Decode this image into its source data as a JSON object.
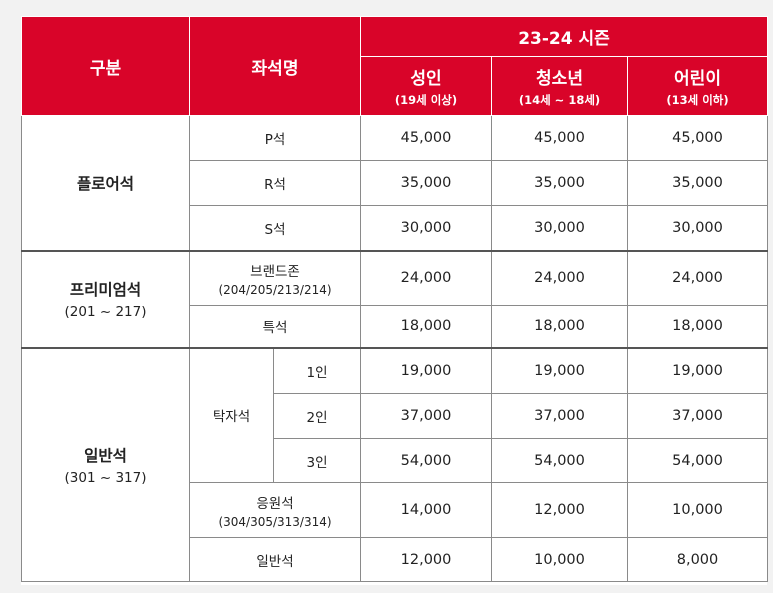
{
  "header": {
    "category": "구분",
    "seat_name": "좌석명",
    "season": "23-24 시즌",
    "adult": {
      "label": "성인",
      "sub": "(19세 이상)"
    },
    "youth": {
      "label": "청소년",
      "sub": "(14세 ~ 18세)"
    },
    "child": {
      "label": "어린이",
      "sub": "(13세 이하)"
    }
  },
  "floor": {
    "category": "플로어석",
    "rows": [
      {
        "seat": "P석",
        "adult": "45,000",
        "youth": "45,000",
        "child": "45,000"
      },
      {
        "seat": "R석",
        "adult": "35,000",
        "youth": "35,000",
        "child": "35,000"
      },
      {
        "seat": "S석",
        "adult": "30,000",
        "youth": "30,000",
        "child": "30,000"
      }
    ]
  },
  "premium": {
    "category": "프리미엄석",
    "range": "(201 ~ 217)",
    "rows": [
      {
        "seat": "브랜드존",
        "sub": "(204/205/213/214)",
        "adult": "24,000",
        "youth": "24,000",
        "child": "24,000"
      },
      {
        "seat": "특석",
        "adult": "18,000",
        "youth": "18,000",
        "child": "18,000"
      }
    ]
  },
  "general": {
    "category": "일반석",
    "range": "(301 ~ 317)",
    "table_seat": "탁자석",
    "table_rows": [
      {
        "people": "1인",
        "adult": "19,000",
        "youth": "19,000",
        "child": "19,000"
      },
      {
        "people": "2인",
        "adult": "37,000",
        "youth": "37,000",
        "child": "37,000"
      },
      {
        "people": "3인",
        "adult": "54,000",
        "youth": "54,000",
        "child": "54,000"
      }
    ],
    "cheer": {
      "seat": "응원석",
      "sub": "(304/305/313/314)",
      "adult": "14,000",
      "youth": "12,000",
      "child": "10,000"
    },
    "normal": {
      "seat": "일반석",
      "adult": "12,000",
      "youth": "10,000",
      "child": "8,000"
    }
  }
}
